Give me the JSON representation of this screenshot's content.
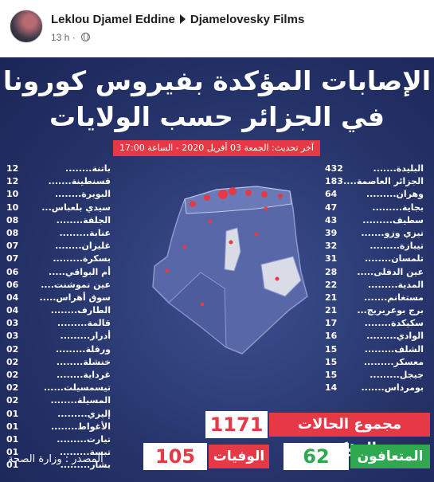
{
  "post": {
    "author": "Leklou Djamel Eddine",
    "page": "Djamelovesky Films",
    "time": "13 h",
    "privacy_icon": "globe-icon"
  },
  "graphic": {
    "title_line1": "الإصابات المؤكدة بفيروس كورونا",
    "title_line2": "في الجزائر حسب الولايات",
    "update": "آخر تحديث: الجمعة 03 أفريل 2020 - الساعة 17:00",
    "right_list": [
      {
        "name": "البليدة.......",
        "count": "432"
      },
      {
        "name": "الجزائر العاصمة....",
        "count": "183"
      },
      {
        "name": "وهران.........",
        "count": "64"
      },
      {
        "name": "بجاية.........",
        "count": "47"
      },
      {
        "name": "سطيف.........",
        "count": "43"
      },
      {
        "name": "تيزي وزو.......",
        "count": "39"
      },
      {
        "name": "تيبازة.........",
        "count": "32"
      },
      {
        "name": "تلمسان........",
        "count": "31"
      },
      {
        "name": "عين الدفلى.....",
        "count": "28"
      },
      {
        "name": "المدية.........",
        "count": "22"
      },
      {
        "name": "مستغانم.......",
        "count": "21"
      },
      {
        "name": "برج بوعريريج...",
        "count": "21"
      },
      {
        "name": "سكيكدة........",
        "count": "17"
      },
      {
        "name": "الوادي.........",
        "count": "16"
      },
      {
        "name": "الشلف.........",
        "count": "15"
      },
      {
        "name": "معسكر.........",
        "count": "15"
      },
      {
        "name": "جيجل.........",
        "count": "15"
      },
      {
        "name": "بومرداس.......",
        "count": "14"
      }
    ],
    "left_list": [
      {
        "name": "باتنة........",
        "count": "12"
      },
      {
        "name": "قسنطينة.......",
        "count": "12"
      },
      {
        "name": "البويرة........",
        "count": "10"
      },
      {
        "name": "سيدي بلعباس...",
        "count": "10"
      },
      {
        "name": "الجلفة........",
        "count": "08"
      },
      {
        "name": "عنابة.........",
        "count": "08"
      },
      {
        "name": "غليزان........",
        "count": "07"
      },
      {
        "name": "بسكرة.........",
        "count": "07"
      },
      {
        "name": "أم البواقي.....",
        "count": "06"
      },
      {
        "name": "عين تموشنت....",
        "count": "06"
      },
      {
        "name": "سوق أهراس.....",
        "count": "04"
      },
      {
        "name": "الطارف........",
        "count": "04"
      },
      {
        "name": "قالمة.........",
        "count": "03"
      },
      {
        "name": "أدرار.........",
        "count": "03"
      },
      {
        "name": "ورقلة.........",
        "count": "02"
      },
      {
        "name": "خنشلة........",
        "count": "02"
      },
      {
        "name": "غرداية........",
        "count": "02"
      },
      {
        "name": "تيسمسيلت......",
        "count": "02"
      },
      {
        "name": "المسيلة........",
        "count": "02"
      },
      {
        "name": "إليزي.........",
        "count": "01"
      },
      {
        "name": "الأغواط........",
        "count": "01"
      },
      {
        "name": "تيارت.........",
        "count": "01"
      },
      {
        "name": "تبسة.........",
        "count": "01"
      },
      {
        "name": "بشار.........",
        "count": "01"
      }
    ],
    "total_label": "مجموع الحالات المؤكدة",
    "total_value": "1171",
    "recovered_label": "المتعافون",
    "recovered_value": "62",
    "deaths_label": "الوفيات",
    "deaths_value": "105",
    "source": "المصدر : وزارة الصحة",
    "colors": {
      "background": "#26346b",
      "map_fill": "#5767a8",
      "map_highlight": "#d9dbe6",
      "accent_red": "#e63946",
      "accent_green": "#2fa84f"
    }
  }
}
